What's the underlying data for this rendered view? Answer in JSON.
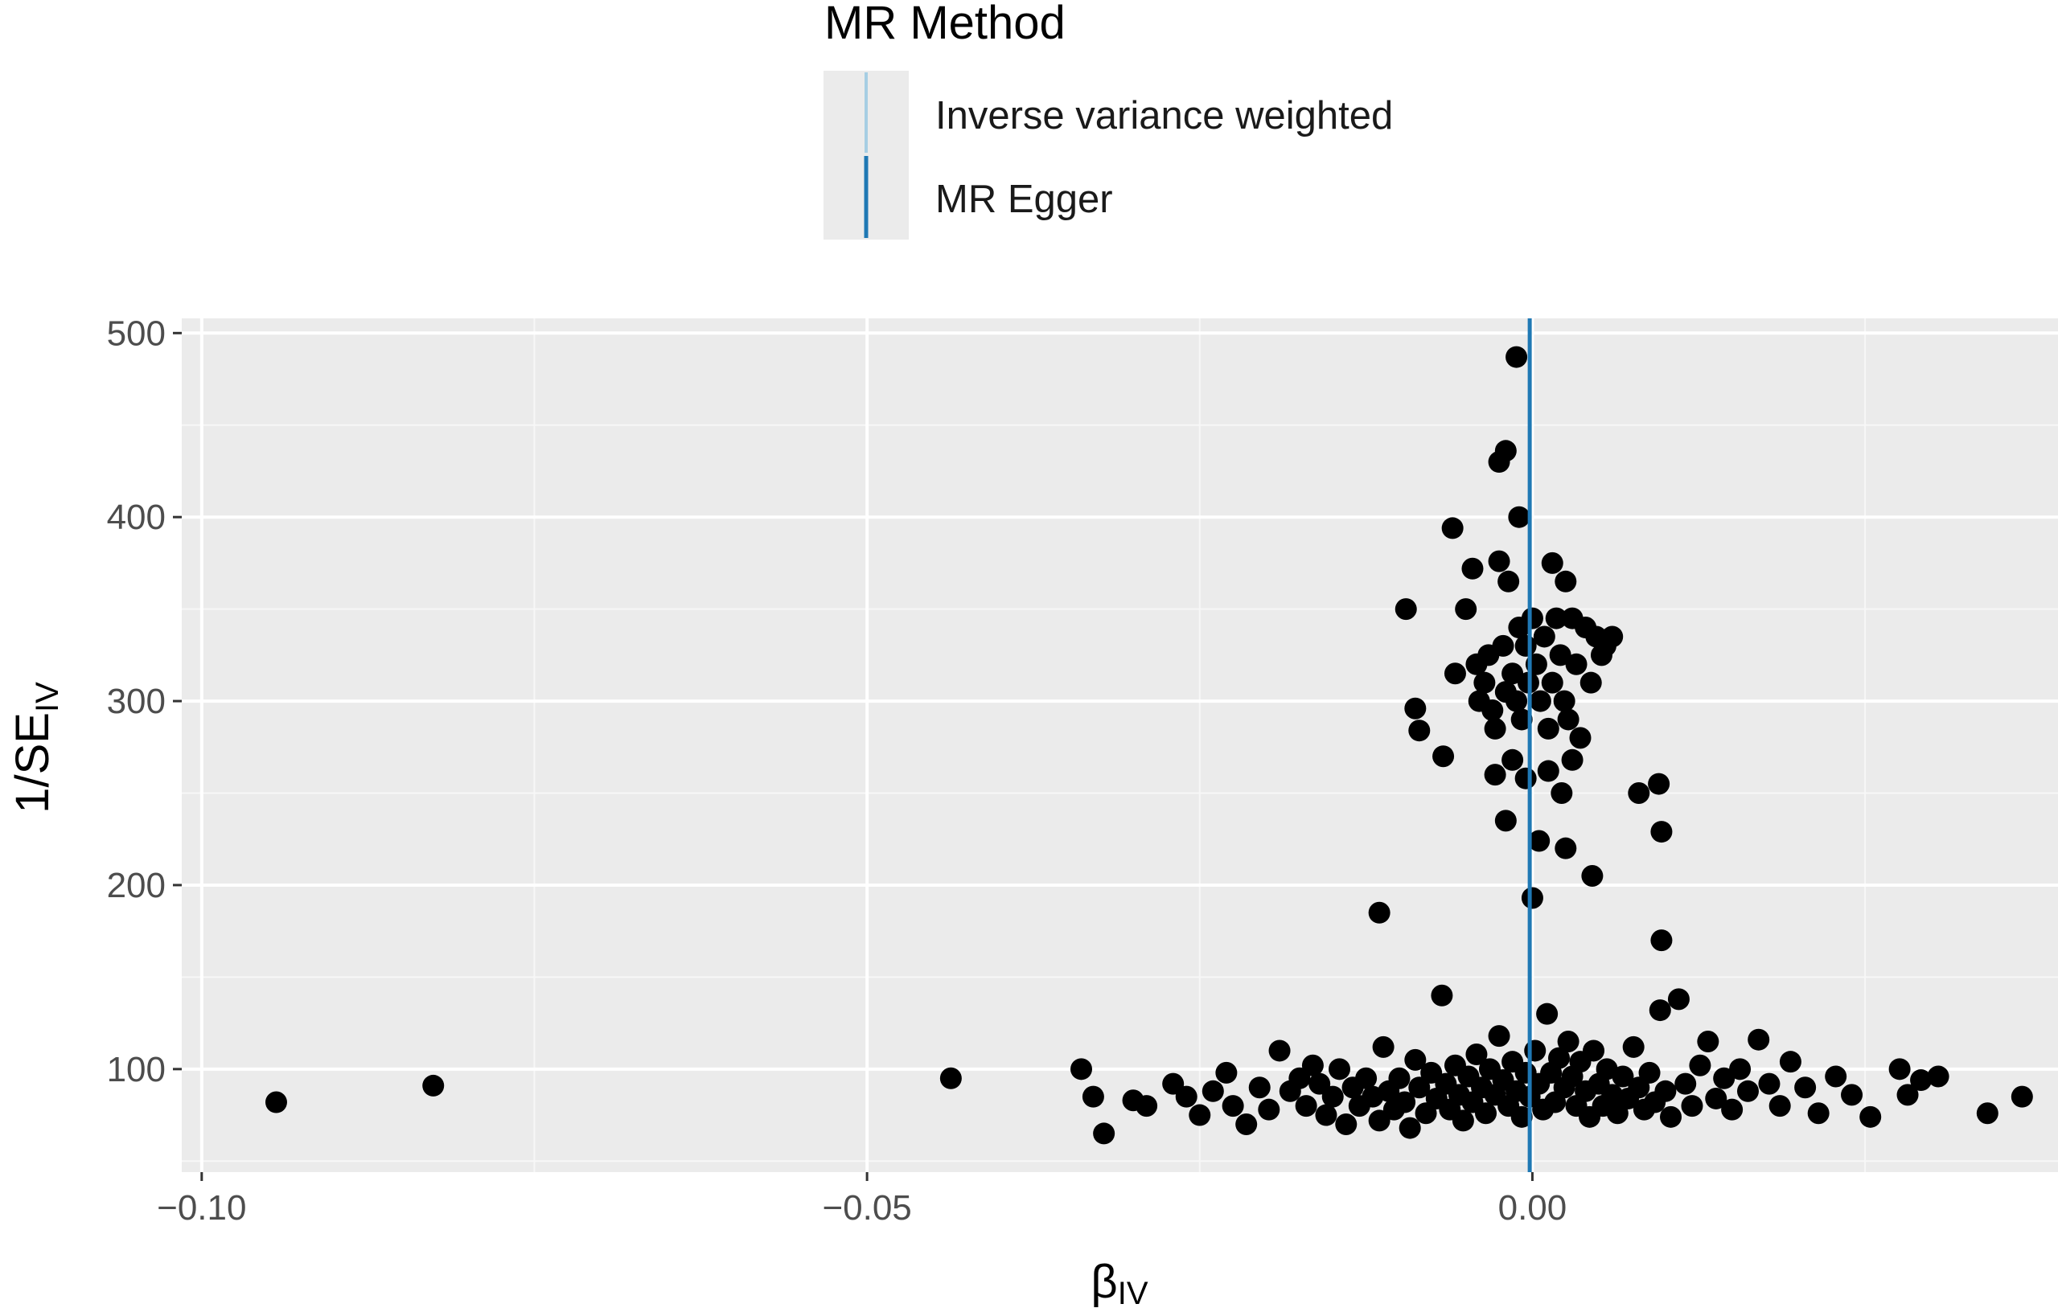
{
  "legend": {
    "title": "MR Method",
    "items": [
      {
        "label": "Inverse variance weighted",
        "color": "#a6cee3"
      },
      {
        "label": "MR Egger",
        "color": "#1f78b4"
      }
    ]
  },
  "chart_data": {
    "type": "scatter",
    "xlabel_main": "β",
    "xlabel_sub": "IV",
    "ylabel_main": "1/SE",
    "ylabel_sub": "IV",
    "xlim": [
      -0.1015,
      0.0395
    ],
    "ylim": [
      44,
      508
    ],
    "x_ticks": [
      -0.1,
      -0.05,
      0.0
    ],
    "x_tick_labels": [
      "−0.10",
      "−0.05",
      "0.00"
    ],
    "y_ticks": [
      100,
      200,
      300,
      400,
      500
    ],
    "y_tick_labels": [
      "100",
      "200",
      "300",
      "400",
      "500"
    ],
    "grid": true,
    "background": "#ebebeb",
    "point_color": "#000000",
    "vlines": [
      {
        "method": "Inverse variance weighted",
        "x": -0.0002,
        "color": "#a6cee3"
      },
      {
        "method": "MR Egger",
        "x": -0.0002,
        "color": "#1f78b4"
      }
    ],
    "points": [
      [
        -0.0944,
        82
      ],
      [
        -0.0826,
        91
      ],
      [
        -0.0437,
        95
      ],
      [
        -0.0339,
        100
      ],
      [
        -0.033,
        85
      ],
      [
        -0.0322,
        65
      ],
      [
        -0.03,
        83
      ],
      [
        -0.029,
        80
      ],
      [
        -0.027,
        92
      ],
      [
        -0.026,
        85
      ],
      [
        -0.025,
        75
      ],
      [
        -0.024,
        88
      ],
      [
        -0.023,
        98
      ],
      [
        -0.0225,
        80
      ],
      [
        -0.0215,
        70
      ],
      [
        -0.0205,
        90
      ],
      [
        -0.0198,
        78
      ],
      [
        -0.019,
        110
      ],
      [
        -0.0182,
        88
      ],
      [
        -0.0175,
        95
      ],
      [
        -0.017,
        80
      ],
      [
        -0.0165,
        102
      ],
      [
        -0.016,
        92
      ],
      [
        -0.0155,
        75
      ],
      [
        -0.015,
        85
      ],
      [
        -0.0145,
        100
      ],
      [
        -0.014,
        70
      ],
      [
        -0.0135,
        90
      ],
      [
        -0.013,
        80
      ],
      [
        -0.0125,
        95
      ],
      [
        -0.012,
        85
      ],
      [
        -0.0115,
        72
      ],
      [
        -0.0112,
        112
      ],
      [
        -0.0108,
        88
      ],
      [
        -0.0104,
        78
      ],
      [
        -0.01,
        95
      ],
      [
        -0.0096,
        82
      ],
      [
        -0.0092,
        68
      ],
      [
        -0.0088,
        105
      ],
      [
        -0.0085,
        90
      ],
      [
        -0.008,
        76
      ],
      [
        -0.0076,
        98
      ],
      [
        -0.0072,
        84
      ],
      [
        -0.0068,
        140
      ],
      [
        -0.0065,
        92
      ],
      [
        -0.0062,
        78
      ],
      [
        -0.0058,
        102
      ],
      [
        -0.0055,
        86
      ],
      [
        -0.0052,
        72
      ],
      [
        -0.0048,
        96
      ],
      [
        -0.0045,
        82
      ],
      [
        -0.0042,
        108
      ],
      [
        -0.0038,
        90
      ],
      [
        -0.0035,
        76
      ],
      [
        -0.0032,
        100
      ],
      [
        -0.0028,
        86
      ],
      [
        -0.0025,
        118
      ],
      [
        -0.0022,
        94
      ],
      [
        -0.0018,
        80
      ],
      [
        -0.0015,
        104
      ],
      [
        -0.0012,
        88
      ],
      [
        -0.0008,
        74
      ],
      [
        -0.0005,
        98
      ],
      [
        -0.0002,
        85
      ],
      [
        0.0002,
        110
      ],
      [
        0.0005,
        92
      ],
      [
        0.0008,
        78
      ],
      [
        0.0011,
        130
      ],
      [
        0.0014,
        98
      ],
      [
        0.0017,
        82
      ],
      [
        0.002,
        106
      ],
      [
        0.0024,
        90
      ],
      [
        0.0027,
        115
      ],
      [
        0.003,
        96
      ],
      [
        0.0033,
        80
      ],
      [
        0.0036,
        104
      ],
      [
        0.004,
        88
      ],
      [
        0.0043,
        74
      ],
      [
        0.0046,
        110
      ],
      [
        0.005,
        92
      ],
      [
        0.0053,
        80
      ],
      [
        0.0056,
        100
      ],
      [
        0.006,
        86
      ],
      [
        0.0064,
        76
      ],
      [
        0.0068,
        96
      ],
      [
        0.0072,
        84
      ],
      [
        0.0076,
        112
      ],
      [
        0.008,
        90
      ],
      [
        0.0084,
        78
      ],
      [
        0.0088,
        98
      ],
      [
        0.0092,
        82
      ],
      [
        0.0096,
        132
      ],
      [
        0.01,
        88
      ],
      [
        0.0104,
        74
      ],
      [
        0.011,
        138
      ],
      [
        0.0115,
        92
      ],
      [
        0.012,
        80
      ],
      [
        0.0126,
        102
      ],
      [
        0.0132,
        115
      ],
      [
        0.0138,
        84
      ],
      [
        0.0144,
        95
      ],
      [
        0.015,
        78
      ],
      [
        0.0156,
        100
      ],
      [
        0.0162,
        88
      ],
      [
        0.017,
        116
      ],
      [
        0.0178,
        92
      ],
      [
        0.0186,
        80
      ],
      [
        0.0194,
        104
      ],
      [
        0.0205,
        90
      ],
      [
        0.0215,
        76
      ],
      [
        0.0228,
        96
      ],
      [
        0.024,
        86
      ],
      [
        0.0254,
        74
      ],
      [
        0.0276,
        100
      ],
      [
        0.0282,
        86
      ],
      [
        0.0292,
        94
      ],
      [
        0.0305,
        96
      ],
      [
        0.0342,
        76
      ],
      [
        0.0368,
        85
      ],
      [
        -0.0095,
        350
      ],
      [
        -0.0088,
        296
      ],
      [
        -0.0085,
        284
      ],
      [
        -0.0067,
        270
      ],
      [
        -0.006,
        394
      ],
      [
        -0.0058,
        315
      ],
      [
        -0.005,
        350
      ],
      [
        -0.0045,
        372
      ],
      [
        -0.0042,
        320
      ],
      [
        -0.004,
        300
      ],
      [
        -0.0036,
        310
      ],
      [
        -0.0033,
        325
      ],
      [
        -0.003,
        295
      ],
      [
        -0.0028,
        285
      ],
      [
        -0.0025,
        376
      ],
      [
        -0.0022,
        330
      ],
      [
        -0.002,
        305
      ],
      [
        -0.0018,
        365
      ],
      [
        -0.0015,
        315
      ],
      [
        -0.0012,
        300
      ],
      [
        -0.001,
        340
      ],
      [
        -0.0008,
        290
      ],
      [
        -0.0005,
        330
      ],
      [
        -0.0003,
        310
      ],
      [
        0.0,
        345
      ],
      [
        0.0003,
        320
      ],
      [
        0.0006,
        300
      ],
      [
        0.0009,
        335
      ],
      [
        0.0012,
        285
      ],
      [
        0.0015,
        310
      ],
      [
        0.0018,
        345
      ],
      [
        0.0021,
        325
      ],
      [
        0.0024,
        300
      ],
      [
        0.0027,
        290
      ],
      [
        0.003,
        345
      ],
      [
        0.0033,
        320
      ],
      [
        0.0036,
        280
      ],
      [
        0.004,
        340
      ],
      [
        0.0044,
        310
      ],
      [
        0.0048,
        335
      ],
      [
        0.0052,
        325
      ],
      [
        0.0055,
        330
      ],
      [
        0.006,
        335
      ],
      [
        0.0015,
        375
      ],
      [
        0.0025,
        365
      ],
      [
        -0.0028,
        260
      ],
      [
        -0.0015,
        268
      ],
      [
        -0.0005,
        258
      ],
      [
        0.0012,
        262
      ],
      [
        0.0022,
        250
      ],
      [
        0.003,
        268
      ],
      [
        -0.002,
        235
      ],
      [
        0.0005,
        224
      ],
      [
        0.0025,
        220
      ],
      [
        0.0045,
        205
      ],
      [
        -0.0115,
        185
      ],
      [
        0.0,
        193
      ],
      [
        0.008,
        250
      ],
      [
        0.0095,
        255
      ],
      [
        0.0097,
        229
      ],
      [
        0.0097,
        170
      ],
      [
        -0.0025,
        430
      ],
      [
        -0.002,
        436
      ],
      [
        -0.0012,
        487
      ],
      [
        -0.001,
        400
      ]
    ]
  }
}
